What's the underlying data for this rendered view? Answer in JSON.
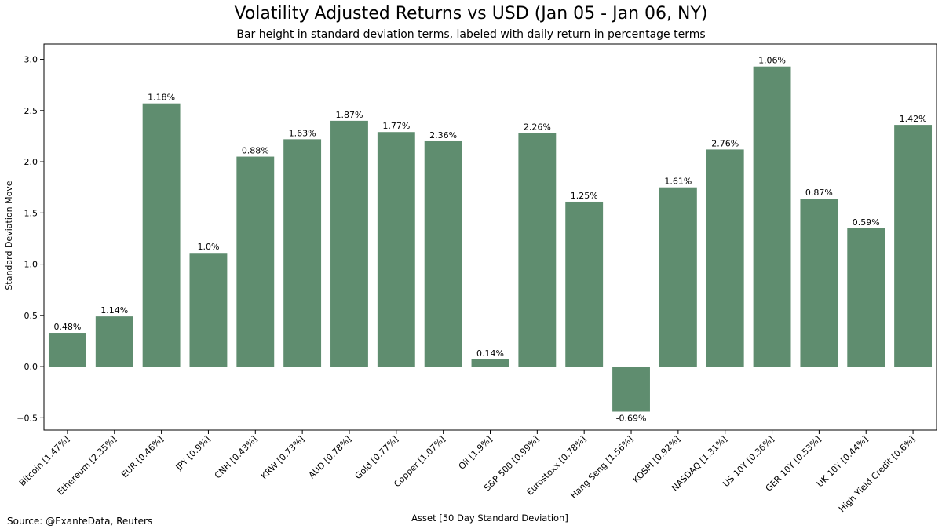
{
  "chart_data": {
    "type": "bar",
    "title": "Volatility Adjusted Returns vs USD (Jan 05 - Jan 06, NY)",
    "subtitle": "Bar height in standard deviation terms, labeled with daily return in percentage terms",
    "xlabel": "Asset [50 Day Standard Deviation]",
    "ylabel": "Standard Deviation Move",
    "ylim": [
      -0.62,
      3.15
    ],
    "yticks": [
      -0.5,
      0.0,
      0.5,
      1.0,
      1.5,
      2.0,
      2.5,
      3.0
    ],
    "ytick_labels": [
      "−0.5",
      "0.0",
      "0.5",
      "1.0",
      "1.5",
      "2.0",
      "2.5",
      "3.0"
    ],
    "categories": [
      "Bitcoin [1.47%]",
      "Ethereum [2.35%]",
      "EUR [0.46%]",
      "JPY [0.9%]",
      "CNH [0.43%]",
      "KRW [0.73%]",
      "AUD [0.78%]",
      "Gold [0.77%]",
      "Copper [1.07%]",
      "Oil [1.9%]",
      "S&P 500 [0.99%]",
      "Eurostoxx [0.78%]",
      "Hang Seng [1.56%]",
      "KOSPI [0.92%]",
      "NASDAQ [1.31%]",
      "US 10Y [0.36%]",
      "GER 10Y [0.53%]",
      "UK 10Y [0.44%]",
      "High Yield Credit [0.6%]"
    ],
    "values": [
      0.33,
      0.49,
      2.57,
      1.11,
      2.05,
      2.22,
      2.4,
      2.29,
      2.2,
      0.07,
      2.28,
      1.61,
      -0.44,
      1.75,
      2.12,
      2.93,
      1.64,
      1.35,
      2.36
    ],
    "data_labels": [
      "0.48%",
      "1.14%",
      "1.18%",
      "1.0%",
      "0.88%",
      "1.63%",
      "1.87%",
      "1.77%",
      "2.36%",
      "0.14%",
      "2.26%",
      "1.25%",
      "-0.69%",
      "1.61%",
      "2.76%",
      "1.06%",
      "0.87%",
      "0.59%",
      "1.42%"
    ],
    "bar_color": "#5f8d6f",
    "grid": false,
    "legend": "none"
  },
  "source": "Source: @ExanteData, Reuters"
}
